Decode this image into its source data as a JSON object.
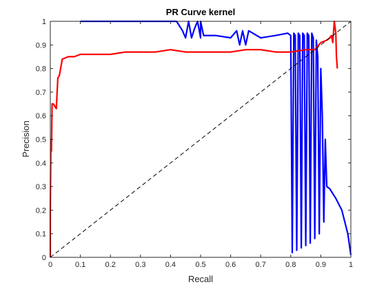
{
  "chart_data": {
    "type": "line",
    "title": "PR Curve kernel",
    "xlabel": "Recall",
    "ylabel": "Precision",
    "xlim": [
      0,
      1
    ],
    "ylim": [
      0,
      1
    ],
    "xticks": [
      0,
      0.1,
      0.2,
      0.3,
      0.4,
      0.5,
      0.6,
      0.7,
      0.8,
      0.9,
      1
    ],
    "yticks": [
      0,
      0.1,
      0.2,
      0.3,
      0.4,
      0.5,
      0.6,
      0.7,
      0.8,
      0.9,
      1
    ],
    "xtick_labels": [
      "0",
      "0.1",
      "0.2",
      "0.3",
      "0.4",
      "0.5",
      "0.6",
      "0.7",
      "0.8",
      "0.9",
      "1"
    ],
    "ytick_labels": [
      "0",
      "0.1",
      "0.2",
      "0.3",
      "0.4",
      "0.5",
      "0.6",
      "0.7",
      "0.8",
      "0.9",
      "1"
    ],
    "grid": false,
    "box": true,
    "series": [
      {
        "color": "#0000ff",
        "style": "solid",
        "x": [
          0.1,
          0.42,
          0.43,
          0.44,
          0.45,
          0.46,
          0.47,
          0.48,
          0.49,
          0.5,
          0.5,
          0.51,
          0.52,
          0.55,
          0.6,
          0.62,
          0.63,
          0.64,
          0.65,
          0.66,
          0.7,
          0.75,
          0.79,
          0.8,
          0.805,
          0.81,
          0.815,
          0.82,
          0.825,
          0.83,
          0.835,
          0.84,
          0.845,
          0.85,
          0.855,
          0.86,
          0.865,
          0.87,
          0.875,
          0.88,
          0.885,
          0.89,
          0.895,
          0.9,
          0.905,
          0.91,
          0.915,
          0.92,
          0.93,
          0.95,
          0.97,
          0.99,
          1.0
        ],
        "y": [
          1.0,
          1.0,
          0.98,
          0.96,
          0.93,
          1.0,
          0.93,
          0.97,
          1.0,
          0.93,
          1.0,
          0.94,
          0.94,
          0.94,
          0.93,
          0.96,
          0.9,
          0.96,
          0.9,
          0.96,
          0.93,
          0.94,
          0.95,
          0.94,
          0.02,
          0.95,
          0.94,
          0.03,
          0.95,
          0.94,
          0.04,
          0.95,
          0.94,
          0.05,
          0.95,
          0.94,
          0.06,
          0.95,
          0.93,
          0.08,
          0.92,
          0.85,
          0.1,
          0.8,
          0.6,
          0.15,
          0.5,
          0.3,
          0.29,
          0.25,
          0.2,
          0.1,
          0.01
        ]
      },
      {
        "color": "#ff0000",
        "style": "solid",
        "x": [
          0.0,
          0.0,
          0.002,
          0.004,
          0.006,
          0.008,
          0.01,
          0.015,
          0.02,
          0.025,
          0.03,
          0.04,
          0.06,
          0.08,
          0.1,
          0.15,
          0.2,
          0.25,
          0.3,
          0.35,
          0.4,
          0.45,
          0.5,
          0.55,
          0.6,
          0.65,
          0.7,
          0.75,
          0.8,
          0.85,
          0.88,
          0.9,
          0.92,
          0.93,
          0.935,
          0.94,
          0.945,
          0.95,
          0.952,
          0.955
        ],
        "y": [
          0.0,
          0.2,
          0.5,
          0.45,
          0.65,
          0.65,
          0.65,
          0.64,
          0.63,
          0.76,
          0.77,
          0.84,
          0.85,
          0.85,
          0.86,
          0.86,
          0.86,
          0.87,
          0.87,
          0.87,
          0.88,
          0.87,
          0.87,
          0.87,
          0.87,
          0.88,
          0.88,
          0.87,
          0.87,
          0.88,
          0.88,
          0.91,
          0.92,
          0.93,
          0.94,
          0.91,
          1.0,
          0.95,
          0.85,
          0.8
        ]
      },
      {
        "color": "#000000",
        "style": "dashed",
        "x": [
          0,
          1
        ],
        "y": [
          0,
          1
        ]
      }
    ]
  }
}
